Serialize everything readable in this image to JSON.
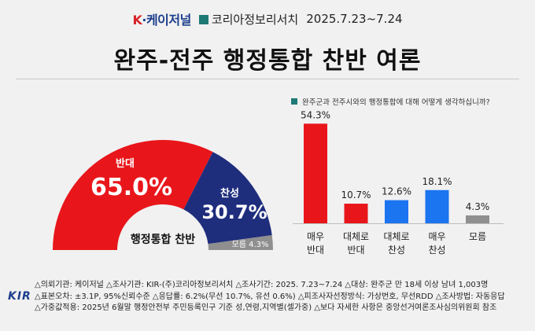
{
  "header": {
    "logo_k": "K",
    "logo_rest": "·케이저널",
    "pollster": "코리아정보리서치",
    "dates": "2025.7.23~7.24"
  },
  "title": "완주-전주 행정통합 찬반 여론",
  "question": "완주군과 전주시와의 행정통합에 대해 어떻게 생각하십니까?",
  "colors": {
    "red": "#e8161b",
    "navy": "#1f2d7d",
    "blue": "#1b74f0",
    "gray": "#8f8f8f"
  },
  "chart_data": [
    {
      "type": "pie",
      "shape": "semi-donut",
      "center_label": "행정통합 찬반",
      "slices": [
        {
          "label": "반대",
          "value": 65.0,
          "display": "65.0%",
          "color": "#e8161b"
        },
        {
          "label": "찬성",
          "value": 30.7,
          "display": "30.7%",
          "color": "#1f2d7d"
        },
        {
          "label": "모름",
          "value": 4.3,
          "display": "4.3%",
          "color": "#8f8f8f"
        }
      ]
    },
    {
      "type": "bar",
      "categories": [
        [
          "매우",
          "반대"
        ],
        [
          "대체로",
          "반대"
        ],
        [
          "대체로",
          "찬성"
        ],
        [
          "매우",
          "찬성"
        ],
        [
          "모름"
        ]
      ],
      "values": [
        54.3,
        10.7,
        12.6,
        18.1,
        4.3
      ],
      "labels": [
        "54.3%",
        "10.7%",
        "12.6%",
        "18.1%",
        "4.3%"
      ],
      "colors": [
        "#e8161b",
        "#e8161b",
        "#1b74f0",
        "#1b74f0",
        "#8f8f8f"
      ],
      "ylim": [
        0,
        60
      ]
    }
  ],
  "footer": {
    "logo": "KIR",
    "lines": [
      "△의뢰기관: 케이저널  △조사기관: KIR-(주)코리아정보리서치 △조사기간: 2025. 7.23~7.24 △대상: 완주군 만 18세 이상 남녀 1,003명",
      "△표본오차: ±3.1P, 95%신뢰수준 △응답률: 6.2%(무선 10.7%, 유선 0.6%) △피조사자선정방식: 가상번호, 무선RDD △조사방법: 자동응답",
      "△가중값적용: 2025년 6월말 행정안전부 주민등록인구 기준 성,연령,지역별(셀가중) △보다 자세한 사항은 중앙선거여론조사심의위원회 참조"
    ]
  }
}
